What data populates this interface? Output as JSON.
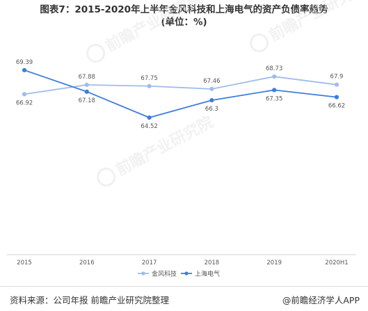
{
  "title": "图表7：2015-2020年上半年金风科技和上海电气的资产负债率趋势",
  "subtitle": "(单位：%)",
  "chart_data": {
    "type": "line",
    "categories": [
      "2015",
      "2016",
      "2017",
      "2018",
      "2019",
      "2020H1"
    ],
    "series": [
      {
        "name": "金风科技",
        "values": [
          66.92,
          67.88,
          67.75,
          67.46,
          68.73,
          67.9
        ],
        "labels": [
          "66.92",
          "67.88",
          "67.75",
          "67.46",
          "68.73",
          "67.9"
        ],
        "color": "#9dbdec"
      },
      {
        "name": "上海电气",
        "values": [
          69.39,
          67.18,
          64.52,
          66.3,
          67.35,
          66.62
        ],
        "labels": [
          "69.39",
          "67.18",
          "64.52",
          "66.3",
          "67.35",
          "66.62"
        ],
        "color": "#3d7ddb"
      }
    ],
    "grid": false,
    "legend_position": "bottom"
  },
  "watermark": {
    "text": "前瞻产业研究院"
  },
  "footer": {
    "source": "资料来源：公司年报 前瞻产业研究院整理",
    "brand": "@前瞻经济学人APP"
  }
}
